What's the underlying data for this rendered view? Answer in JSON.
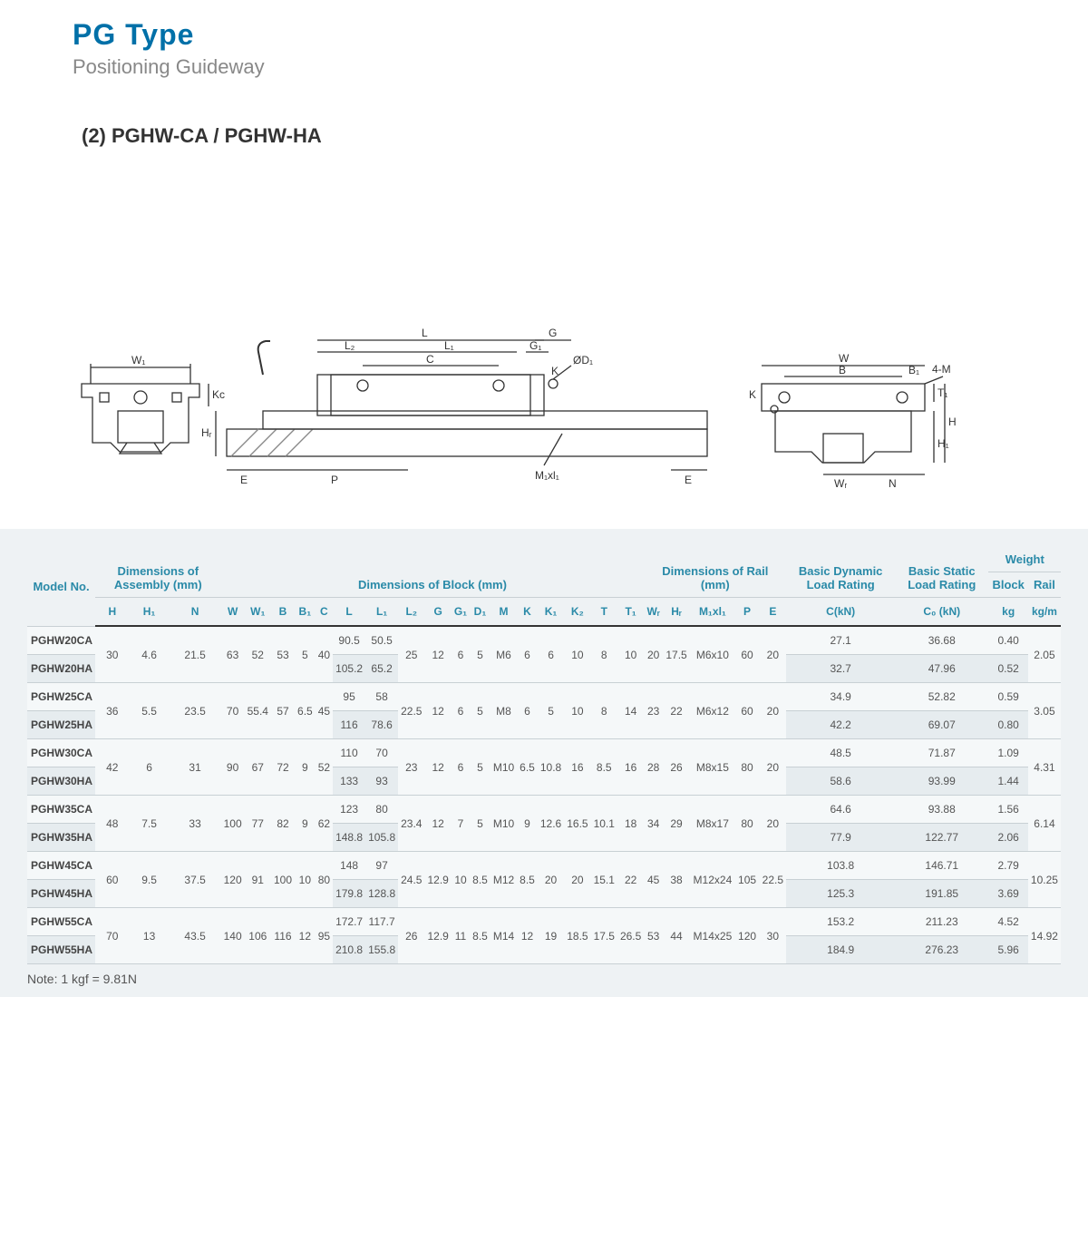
{
  "header": {
    "title": "PG Type",
    "subtitle": "Positioning Guideway"
  },
  "section_title": "(2) PGHW-CA / PGHW-HA",
  "diagram": {
    "labels": {
      "W1": "W₁",
      "Kc": "Kc",
      "HR": "Hᵣ",
      "E": "E",
      "P": "P",
      "L": "L",
      "L2": "L₂",
      "L1": "L₁",
      "C": "C",
      "G": "G",
      "G1": "G₁",
      "K": "K",
      "OD1": "ØD₁",
      "M1xl1": "M₁xl₁",
      "W": "W",
      "B": "B",
      "B1": "B₁",
      "4M": "4-M",
      "T1": "T₁",
      "H": "H",
      "H1": "H₁",
      "WR": "Wᵣ",
      "N": "N"
    },
    "stroke": "#333333",
    "fill_hatch": "#888888"
  },
  "table": {
    "groups": [
      {
        "label": "Model No.",
        "span": 1
      },
      {
        "label": "Dimensions of Assembly (mm)",
        "span": 3
      },
      {
        "label": "Dimensions of Block (mm)",
        "span": 17
      },
      {
        "label": "Dimensions of Rail (mm)",
        "span": 5
      },
      {
        "label": "Basic Dynamic Load Rating",
        "span": 1
      },
      {
        "label": "Basic Static Load Rating",
        "span": 1
      },
      {
        "label": "Weight",
        "span": 2
      }
    ],
    "weight_sub": [
      "Block",
      "Rail"
    ],
    "columns": [
      "",
      "H",
      "H₁",
      "N",
      "W",
      "W₁",
      "B",
      "B₁",
      "C",
      "L",
      "L₁",
      "L₂",
      "G",
      "G₁",
      "D₁",
      "M",
      "K",
      "K₁",
      "K₂",
      "T",
      "T₁",
      "Wᵣ",
      "Hᵣ",
      "M₁xl₁",
      "P",
      "E",
      "C(kN)",
      "C₀ (kN)",
      "kg",
      "kg/m"
    ],
    "pairs": [
      {
        "shared": {
          "H": "30",
          "H1": "4.6",
          "N": "21.5",
          "W": "63",
          "W1": "52",
          "B": "53",
          "B1": "5",
          "C": "40",
          "L2": "25",
          "G": "12",
          "G1": "6",
          "D1": "5",
          "M": "M6",
          "K": "6",
          "K1": "6",
          "K2": "10",
          "T": "8",
          "T1": "10",
          "Wr": "20",
          "Hr": "17.5",
          "M1xl1": "M6x10",
          "P": "60",
          "E": "20",
          "rail": "2.05"
        },
        "rows": [
          {
            "model": "PGHW20CA",
            "L": "90.5",
            "L1": "50.5",
            "CkN": "27.1",
            "C0": "36.68",
            "kg": "0.40"
          },
          {
            "model": "PGHW20HA",
            "L": "105.2",
            "L1": "65.2",
            "CkN": "32.7",
            "C0": "47.96",
            "kg": "0.52"
          }
        ]
      },
      {
        "shared": {
          "H": "36",
          "H1": "5.5",
          "N": "23.5",
          "W": "70",
          "W1": "55.4",
          "B": "57",
          "B1": "6.5",
          "C": "45",
          "L2": "22.5",
          "G": "12",
          "G1": "6",
          "D1": "5",
          "M": "M8",
          "K": "6",
          "K1": "5",
          "K2": "10",
          "T": "8",
          "T1": "14",
          "Wr": "23",
          "Hr": "22",
          "M1xl1": "M6x12",
          "P": "60",
          "E": "20",
          "rail": "3.05"
        },
        "rows": [
          {
            "model": "PGHW25CA",
            "L": "95",
            "L1": "58",
            "CkN": "34.9",
            "C0": "52.82",
            "kg": "0.59"
          },
          {
            "model": "PGHW25HA",
            "L": "116",
            "L1": "78.6",
            "CkN": "42.2",
            "C0": "69.07",
            "kg": "0.80"
          }
        ]
      },
      {
        "shared": {
          "H": "42",
          "H1": "6",
          "N": "31",
          "W": "90",
          "W1": "67",
          "B": "72",
          "B1": "9",
          "C": "52",
          "L2": "23",
          "G": "12",
          "G1": "6",
          "D1": "5",
          "M": "M10",
          "K": "6.5",
          "K1": "10.8",
          "K2": "16",
          "T": "8.5",
          "T1": "16",
          "Wr": "28",
          "Hr": "26",
          "M1xl1": "M8x15",
          "P": "80",
          "E": "20",
          "rail": "4.31"
        },
        "rows": [
          {
            "model": "PGHW30CA",
            "L": "110",
            "L1": "70",
            "CkN": "48.5",
            "C0": "71.87",
            "kg": "1.09"
          },
          {
            "model": "PGHW30HA",
            "L": "133",
            "L1": "93",
            "CkN": "58.6",
            "C0": "93.99",
            "kg": "1.44"
          }
        ]
      },
      {
        "shared": {
          "H": "48",
          "H1": "7.5",
          "N": "33",
          "W": "100",
          "W1": "77",
          "B": "82",
          "B1": "9",
          "C": "62",
          "L2": "23.4",
          "G": "12",
          "G1": "7",
          "D1": "5",
          "M": "M10",
          "K": "9",
          "K1": "12.6",
          "K2": "16.5",
          "T": "10.1",
          "T1": "18",
          "Wr": "34",
          "Hr": "29",
          "M1xl1": "M8x17",
          "P": "80",
          "E": "20",
          "rail": "6.14"
        },
        "rows": [
          {
            "model": "PGHW35CA",
            "L": "123",
            "L1": "80",
            "CkN": "64.6",
            "C0": "93.88",
            "kg": "1.56"
          },
          {
            "model": "PGHW35HA",
            "L": "148.8",
            "L1": "105.8",
            "CkN": "77.9",
            "C0": "122.77",
            "kg": "2.06"
          }
        ]
      },
      {
        "shared": {
          "H": "60",
          "H1": "9.5",
          "N": "37.5",
          "W": "120",
          "W1": "91",
          "B": "100",
          "B1": "10",
          "C": "80",
          "L2": "24.5",
          "G": "12.9",
          "G1": "10",
          "D1": "8.5",
          "M": "M12",
          "K": "8.5",
          "K1": "20",
          "K2": "20",
          "T": "15.1",
          "T1": "22",
          "Wr": "45",
          "Hr": "38",
          "M1xl1": "M12x24",
          "P": "105",
          "E": "22.5",
          "rail": "10.25"
        },
        "rows": [
          {
            "model": "PGHW45CA",
            "L": "148",
            "L1": "97",
            "CkN": "103.8",
            "C0": "146.71",
            "kg": "2.79"
          },
          {
            "model": "PGHW45HA",
            "L": "179.8",
            "L1": "128.8",
            "CkN": "125.3",
            "C0": "191.85",
            "kg": "3.69"
          }
        ]
      },
      {
        "shared": {
          "H": "70",
          "H1": "13",
          "N": "43.5",
          "W": "140",
          "W1": "106",
          "B": "116",
          "B1": "12",
          "C": "95",
          "L2": "26",
          "G": "12.9",
          "G1": "11",
          "D1": "8.5",
          "M": "M14",
          "K": "12",
          "K1": "19",
          "K2": "18.5",
          "T": "17.5",
          "T1": "26.5",
          "Wr": "53",
          "Hr": "44",
          "M1xl1": "M14x25",
          "P": "120",
          "E": "30",
          "rail": "14.92"
        },
        "rows": [
          {
            "model": "PGHW55CA",
            "L": "172.7",
            "L1": "117.7",
            "CkN": "153.2",
            "C0": "211.23",
            "kg": "4.52"
          },
          {
            "model": "PGHW55HA",
            "L": "210.8",
            "L1": "155.8",
            "CkN": "184.9",
            "C0": "276.23",
            "kg": "5.96"
          }
        ]
      }
    ]
  },
  "note": "Note: 1 kgf = 9.81N"
}
